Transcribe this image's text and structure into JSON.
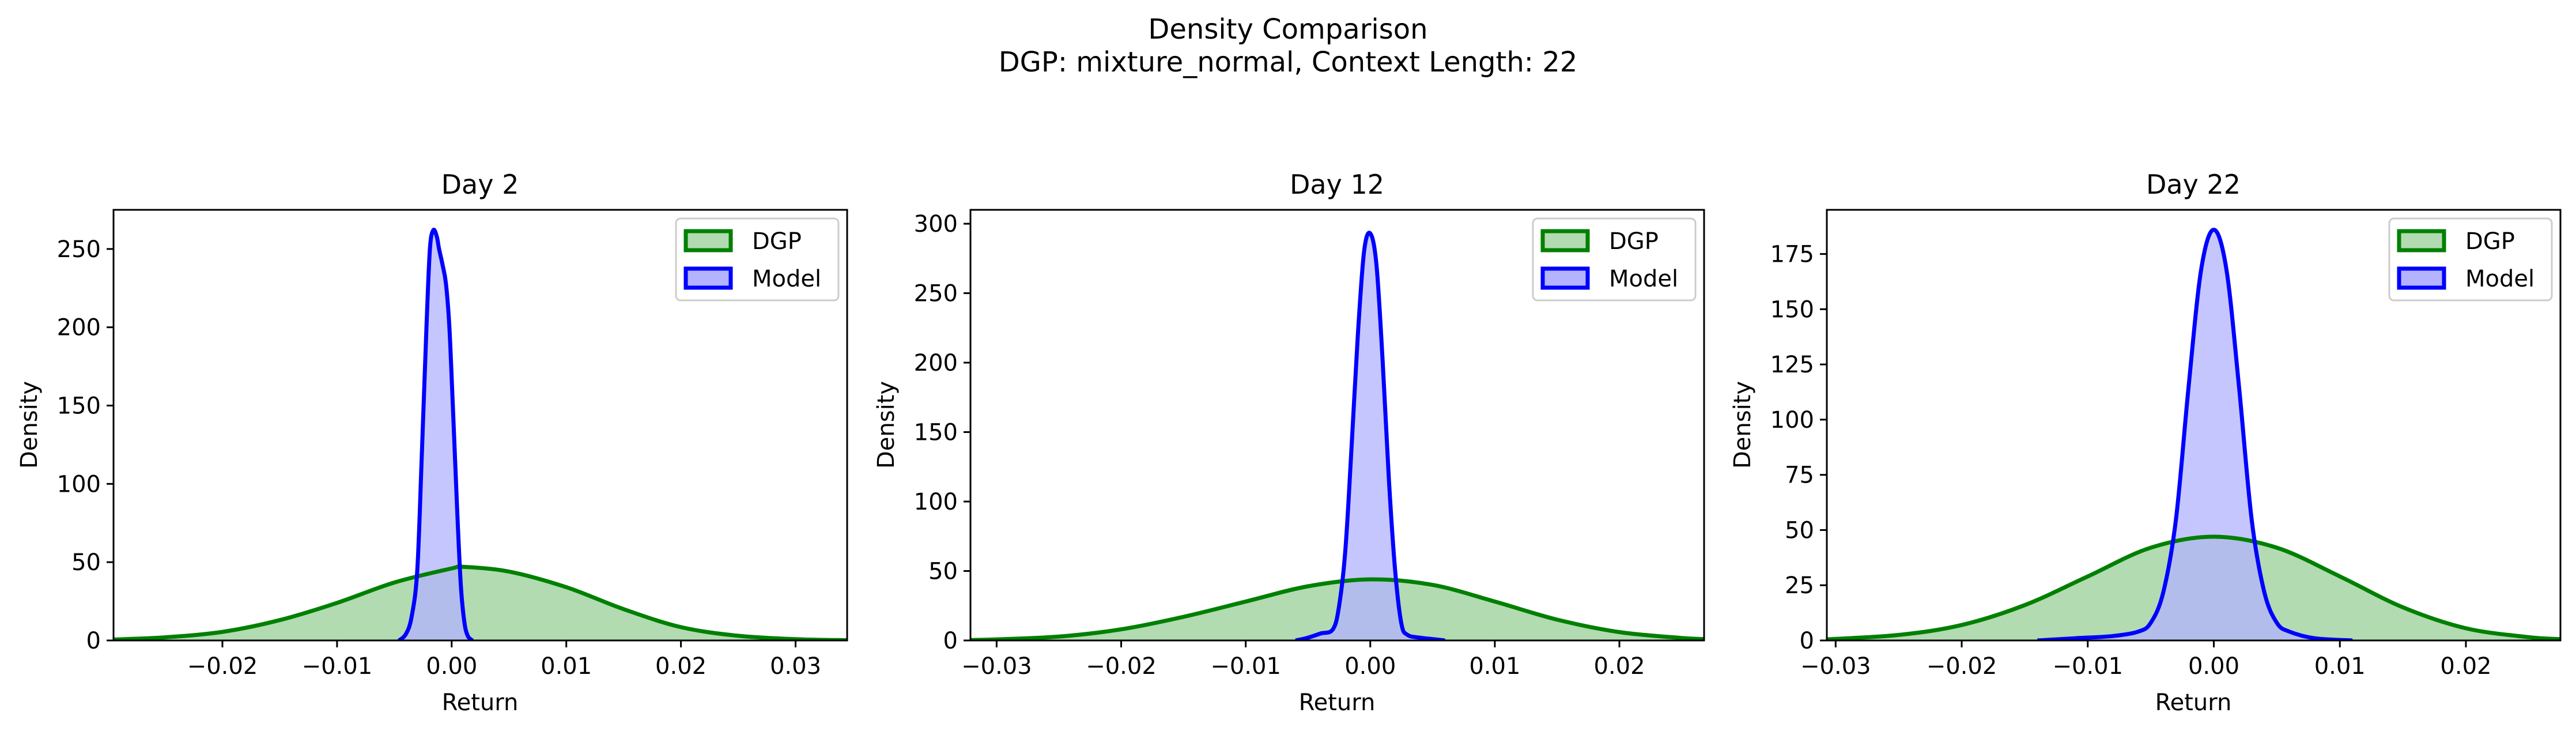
{
  "figure": {
    "title_line1": "Density Comparison",
    "title_line2": "DGP: mixture_normal, Context Length: 22"
  },
  "colors": {
    "dgp_line": "#008000",
    "dgp_fill": "#b2dbb2",
    "model_line": "#0000ff",
    "model_fill": "#b3b3ff",
    "overlap_fill": "#7f8fc8"
  },
  "chart_data": [
    {
      "type": "area",
      "title": "Day 2",
      "xlabel": "Return",
      "ylabel": "Density",
      "xlim": [
        -0.0295,
        0.0345
      ],
      "ylim": [
        0,
        275
      ],
      "xticks": [
        -0.02,
        -0.01,
        0.0,
        0.01,
        0.02,
        0.03
      ],
      "xtick_labels": [
        "−0.02",
        "−0.01",
        "0.00",
        "0.01",
        "0.02",
        "0.03"
      ],
      "yticks": [
        0,
        50,
        100,
        150,
        200,
        250
      ],
      "ytick_labels": [
        "0",
        "50",
        "100",
        "150",
        "200",
        "250"
      ],
      "grid": false,
      "legend": "top-right",
      "series": [
        {
          "name": "DGP",
          "x": [
            -0.0295,
            -0.025,
            -0.02,
            -0.015,
            -0.01,
            -0.005,
            0.0,
            0.001,
            0.005,
            0.01,
            0.015,
            0.02,
            0.025,
            0.03,
            0.0345
          ],
          "y": [
            0.6,
            2,
            5.5,
            13,
            24,
            37,
            46,
            47,
            44,
            34,
            20,
            8.5,
            3,
            0.8,
            0.2
          ]
        },
        {
          "name": "Model",
          "x": [
            -0.0046,
            -0.004,
            -0.0035,
            -0.003,
            -0.0026,
            -0.0022,
            -0.0019,
            -0.0016,
            -0.0013,
            -0.0011,
            -0.0008,
            -0.0005,
            -0.0002,
            0.0001,
            0.0005,
            0.0008,
            0.0011,
            0.0014,
            0.0018
          ],
          "y": [
            0,
            4,
            15,
            45,
            120,
            200,
            250,
            262,
            258,
            250,
            240,
            228,
            200,
            150,
            80,
            35,
            12,
            3,
            0
          ]
        }
      ]
    },
    {
      "type": "area",
      "title": "Day 12",
      "xlabel": "Return",
      "ylabel": "Density",
      "xlim": [
        -0.0321,
        0.0268
      ],
      "ylim": [
        0,
        310
      ],
      "xticks": [
        -0.03,
        -0.02,
        -0.01,
        0.0,
        0.01,
        0.02
      ],
      "xtick_labels": [
        "−0.03",
        "−0.02",
        "−0.01",
        "0.00",
        "0.01",
        "0.02"
      ],
      "yticks": [
        0,
        50,
        100,
        150,
        200,
        250,
        300
      ],
      "ytick_labels": [
        "0",
        "50",
        "100",
        "150",
        "200",
        "250",
        "300"
      ],
      "grid": false,
      "legend": "top-right",
      "series": [
        {
          "name": "DGP",
          "x": [
            -0.0321,
            -0.03,
            -0.025,
            -0.02,
            -0.015,
            -0.01,
            -0.005,
            0.0,
            0.005,
            0.01,
            0.015,
            0.02,
            0.025,
            0.0268
          ],
          "y": [
            0.3,
            0.8,
            2.8,
            8,
            17,
            28,
            39,
            44,
            40,
            28,
            15,
            6,
            1.8,
            1
          ]
        },
        {
          "name": "Model",
          "x": [
            -0.006,
            -0.005,
            -0.004,
            -0.003,
            -0.0025,
            -0.002,
            -0.0015,
            -0.001,
            -0.0005,
            0.0,
            0.0005,
            0.001,
            0.0015,
            0.002,
            0.0025,
            0.003,
            0.004,
            0.005,
            0.006
          ],
          "y": [
            0,
            2,
            5,
            8,
            25,
            65,
            140,
            220,
            280,
            293,
            270,
            200,
            115,
            50,
            12,
            4,
            2,
            1,
            0
          ]
        }
      ]
    },
    {
      "type": "area",
      "title": "Day 22",
      "xlabel": "Return",
      "ylabel": "Density",
      "xlim": [
        -0.0307,
        0.0275
      ],
      "ylim": [
        0,
        195
      ],
      "xticks": [
        -0.03,
        -0.02,
        -0.01,
        0.0,
        0.01,
        0.02
      ],
      "xtick_labels": [
        "−0.03",
        "−0.02",
        "−0.01",
        "0.00",
        "0.01",
        "0.02"
      ],
      "yticks": [
        0,
        25,
        50,
        75,
        100,
        125,
        150,
        175
      ],
      "ytick_labels": [
        "0",
        "25",
        "50",
        "75",
        "100",
        "125",
        "150",
        "175"
      ],
      "grid": false,
      "legend": "top-right",
      "series": [
        {
          "name": "DGP",
          "x": [
            -0.0307,
            -0.025,
            -0.02,
            -0.015,
            -0.01,
            -0.005,
            0.0,
            0.005,
            0.01,
            0.015,
            0.02,
            0.025,
            0.0275
          ],
          "y": [
            0.5,
            2.5,
            7,
            16,
            29,
            42,
            47,
            42,
            29,
            15,
            5.5,
            1.5,
            0.6
          ]
        },
        {
          "name": "Model",
          "x": [
            -0.014,
            -0.011,
            -0.008,
            -0.006,
            -0.005,
            -0.004,
            -0.003,
            -0.002,
            -0.001,
            0.0,
            0.001,
            0.002,
            0.003,
            0.004,
            0.005,
            0.006,
            0.008,
            0.011
          ],
          "y": [
            0,
            1,
            2,
            4,
            8,
            22,
            55,
            115,
            168,
            186,
            168,
            115,
            55,
            22,
            8,
            4,
            1,
            0
          ]
        }
      ]
    }
  ]
}
